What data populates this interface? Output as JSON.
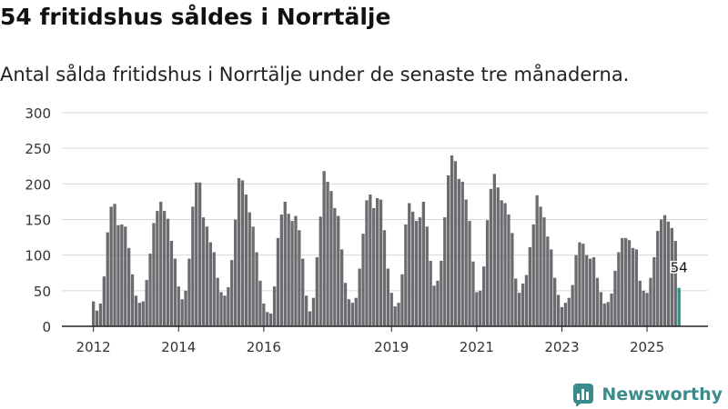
{
  "header": {
    "title": "54 fritidshus såldes i Norrtälje",
    "subtitle": "Antal sålda fritidshus i Norrtälje under de senaste tre månaderna."
  },
  "branding": {
    "name": "Newsworthy",
    "logo_icon": "newsworthy-bar-logo-icon",
    "color": "#3a8c8c"
  },
  "colors": {
    "bar": "#6b6b70",
    "highlight": "#2a9187",
    "grid": "#d7d7d7",
    "axis": "#222222"
  },
  "chart_data": {
    "type": "bar",
    "title": "Antal sålda fritidshus i Norrtälje under de senaste tre månaderna.",
    "xlabel": "",
    "ylabel": "",
    "ylim": [
      0,
      300
    ],
    "yticks": [
      0,
      50,
      100,
      150,
      200,
      250,
      300
    ],
    "x_start": "2012-01",
    "x_end": "2025-12",
    "xtick_labels": [
      {
        "label": "2012",
        "year": 2012
      },
      {
        "label": "2014",
        "year": 2014
      },
      {
        "label": "2016",
        "year": 2016
      },
      {
        "label": "2019",
        "year": 2019
      },
      {
        "label": "2021",
        "year": 2021
      },
      {
        "label": "2023",
        "year": 2023
      },
      {
        "label": "2025",
        "year": 2025
      }
    ],
    "grid": true,
    "values": [
      35,
      22,
      32,
      70,
      132,
      168,
      172,
      142,
      143,
      140,
      110,
      73,
      43,
      33,
      35,
      65,
      102,
      145,
      162,
      175,
      162,
      151,
      120,
      95,
      56,
      38,
      50,
      95,
      168,
      202,
      202,
      153,
      140,
      118,
      104,
      68,
      48,
      43,
      55,
      93,
      150,
      208,
      205,
      185,
      160,
      140,
      104,
      64,
      32,
      20,
      18,
      56,
      124,
      157,
      175,
      158,
      148,
      155,
      135,
      95,
      43,
      21,
      40,
      97,
      154,
      218,
      203,
      190,
      166,
      155,
      108,
      61,
      38,
      33,
      40,
      81,
      130,
      177,
      185,
      166,
      180,
      178,
      135,
      81,
      47,
      28,
      33,
      73,
      143,
      173,
      161,
      148,
      153,
      175,
      140,
      92,
      57,
      64,
      92,
      153,
      212,
      240,
      232,
      207,
      203,
      178,
      148,
      91,
      48,
      50,
      84,
      149,
      193,
      214,
      195,
      177,
      173,
      157,
      131,
      67,
      47,
      60,
      72,
      111,
      143,
      184,
      168,
      153,
      126,
      108,
      68,
      44,
      27,
      33,
      40,
      58,
      100,
      118,
      116,
      100,
      95,
      97,
      68,
      48,
      32,
      34,
      46,
      78,
      104,
      124,
      124,
      121,
      110,
      108,
      64,
      50,
      47,
      68,
      97,
      134,
      150,
      156,
      147,
      138,
      120,
      54
    ],
    "highlight": {
      "index": 165,
      "label": "54",
      "value": 54
    }
  }
}
